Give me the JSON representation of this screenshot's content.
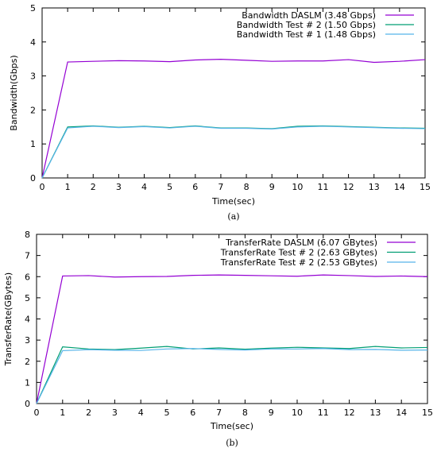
{
  "chart_data": [
    {
      "type": "line",
      "caption": "(a)",
      "xlabel": "Time(sec)",
      "ylabel": "Bandwidth(Gbps)",
      "xlim": [
        0,
        15
      ],
      "ylim": [
        0,
        5
      ],
      "xticks": [
        "0",
        "1",
        "2",
        "3",
        "4",
        "5",
        "6",
        "7",
        "8",
        "9",
        "10",
        "11",
        "12",
        "13",
        "14",
        "15"
      ],
      "yticks": [
        "0",
        "1",
        "2",
        "3",
        "4",
        "5"
      ],
      "grid": false,
      "legend_position": "top-right",
      "x": [
        0,
        1,
        2,
        3,
        4,
        5,
        6,
        7,
        8,
        9,
        10,
        11,
        12,
        13,
        14,
        15
      ],
      "series": [
        {
          "name": "Bandwidth DASLM (3.48 Gbps)",
          "color": "#9400d3",
          "values": [
            0,
            3.41,
            3.43,
            3.45,
            3.44,
            3.42,
            3.47,
            3.49,
            3.46,
            3.43,
            3.44,
            3.44,
            3.48,
            3.4,
            3.43,
            3.48
          ]
        },
        {
          "name": "Bandwidth Test # 2 (1.50 Gbps)",
          "color": "#009e73",
          "values": [
            0,
            1.5,
            1.53,
            1.49,
            1.52,
            1.48,
            1.53,
            1.47,
            1.47,
            1.45,
            1.52,
            1.53,
            1.51,
            1.49,
            1.47,
            1.46
          ]
        },
        {
          "name": "Bandwidth Test # 1 (1.48 Gbps)",
          "color": "#56b4e9",
          "values": [
            0,
            1.47,
            1.52,
            1.48,
            1.51,
            1.47,
            1.52,
            1.46,
            1.46,
            1.44,
            1.5,
            1.52,
            1.5,
            1.48,
            1.46,
            1.45
          ]
        }
      ]
    },
    {
      "type": "line",
      "caption": "(b)",
      "xlabel": "Time(sec)",
      "ylabel": "TransferRate(GBytes)",
      "xlim": [
        0,
        15
      ],
      "ylim": [
        0,
        8
      ],
      "xticks": [
        "0",
        "1",
        "2",
        "3",
        "4",
        "5",
        "6",
        "7",
        "8",
        "9",
        "10",
        "11",
        "12",
        "13",
        "14",
        "15"
      ],
      "yticks": [
        "0",
        "1",
        "2",
        "3",
        "4",
        "5",
        "6",
        "7",
        "8"
      ],
      "grid": false,
      "legend_position": "top-right",
      "x": [
        0,
        1,
        2,
        3,
        4,
        5,
        6,
        7,
        8,
        9,
        10,
        11,
        12,
        13,
        14,
        15
      ],
      "series": [
        {
          "name": "TransferRate DASLM (6.07 GBytes)",
          "color": "#9400d3",
          "values": [
            0,
            6.03,
            6.05,
            5.98,
            6.0,
            6.01,
            6.06,
            6.08,
            6.06,
            6.04,
            6.02,
            6.08,
            6.05,
            6.01,
            6.03,
            6.0
          ]
        },
        {
          "name": "TransferRate Test # 2 (2.63 GBytes)",
          "color": "#009e73",
          "values": [
            0,
            2.68,
            2.58,
            2.55,
            2.62,
            2.7,
            2.58,
            2.63,
            2.57,
            2.62,
            2.66,
            2.63,
            2.6,
            2.7,
            2.63,
            2.65
          ]
        },
        {
          "name": "TransferRate Test # 2 (2.53 GBytes)",
          "color": "#56b4e9",
          "values": [
            0,
            2.5,
            2.55,
            2.52,
            2.51,
            2.58,
            2.6,
            2.56,
            2.53,
            2.58,
            2.58,
            2.6,
            2.55,
            2.56,
            2.52,
            2.53
          ]
        }
      ]
    }
  ]
}
